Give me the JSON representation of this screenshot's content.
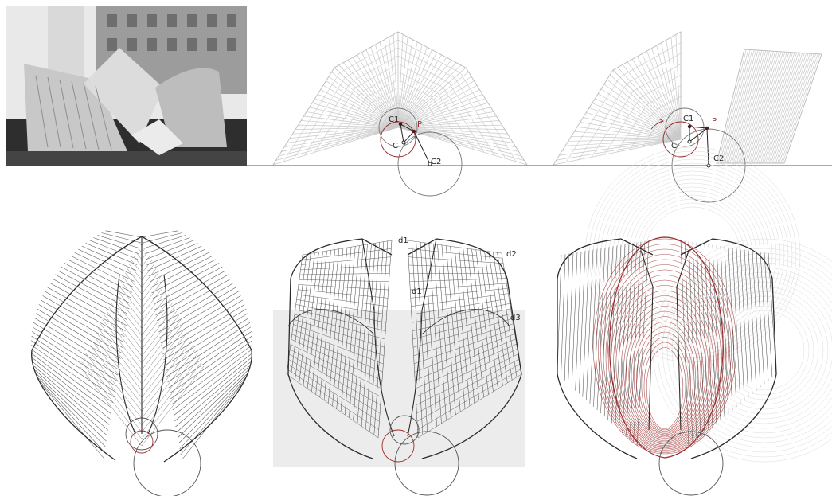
{
  "photo": {
    "icon": "building-photo-grayscale",
    "colors": {
      "sky": "#f2f2f2",
      "building": "#8a8a8a",
      "ground": "#3a3a3a"
    }
  },
  "panels": {
    "top_middle": {
      "labels": [
        "C1",
        "P",
        "C",
        "C2"
      ]
    },
    "top_right": {
      "labels": [
        "C1",
        "P",
        "C",
        "C2"
      ]
    },
    "bottom_middle": {
      "labels": [
        "d1",
        "d2",
        "d1",
        "d3"
      ]
    }
  },
  "colors": {
    "mesh_light": "#c9c9c9",
    "mesh_dark": "#2b2b2b",
    "accent_red": "#9b2a2a",
    "shade": "#ececec",
    "ground_line": "#555555"
  }
}
